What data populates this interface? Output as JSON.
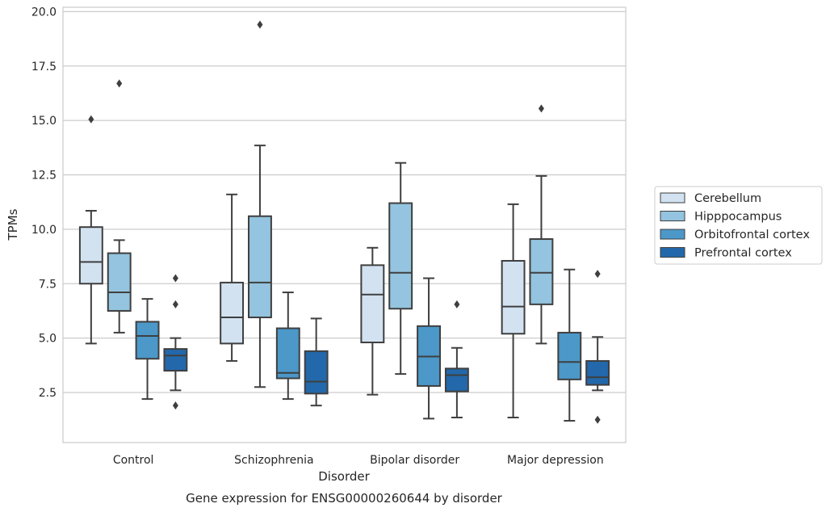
{
  "chart_data": {
    "type": "box",
    "title": "",
    "caption": "Gene expression for ENSG00000260644 by disorder",
    "xlabel": "Disorder",
    "ylabel": "TPMs",
    "categories": [
      "Control",
      "Schizophrenia",
      "Bipolar disorder",
      "Major depression"
    ],
    "ylim": [
      0.2,
      20.2
    ],
    "yticks": [
      2.5,
      5.0,
      7.5,
      10.0,
      12.5,
      15.0,
      17.5,
      20.0
    ],
    "ytick_labels": [
      "2.5",
      "5.0",
      "7.5",
      "10.0",
      "12.5",
      "15.0",
      "17.5",
      "20.0"
    ],
    "grid": "horizontal",
    "legend_position": "right",
    "series": [
      {
        "name": "Cerebellum",
        "color": "#d2e2f1",
        "boxes": [
          {
            "whislo": 4.75,
            "q1": 7.5,
            "med": 8.5,
            "q3": 10.1,
            "whishi": 10.85,
            "fliers": [
              15.05
            ]
          },
          {
            "whislo": 3.95,
            "q1": 4.75,
            "med": 5.95,
            "q3": 7.55,
            "whishi": 11.6,
            "fliers": []
          },
          {
            "whislo": 2.4,
            "q1": 4.8,
            "med": 7.0,
            "q3": 8.35,
            "whishi": 9.15,
            "fliers": []
          },
          {
            "whislo": 1.35,
            "q1": 5.2,
            "med": 6.45,
            "q3": 8.55,
            "whishi": 11.15,
            "fliers": []
          }
        ]
      },
      {
        "name": "Hipppocampus",
        "color": "#94c4df",
        "boxes": [
          {
            "whislo": 5.25,
            "q1": 6.25,
            "med": 7.1,
            "q3": 8.9,
            "whishi": 9.5,
            "fliers": [
              16.7
            ]
          },
          {
            "whislo": 2.75,
            "q1": 5.95,
            "med": 7.55,
            "q3": 10.6,
            "whishi": 13.85,
            "fliers": [
              19.4
            ]
          },
          {
            "whislo": 3.35,
            "q1": 6.35,
            "med": 8.0,
            "q3": 11.2,
            "whishi": 13.05,
            "fliers": []
          },
          {
            "whislo": 4.75,
            "q1": 6.55,
            "med": 8.0,
            "q3": 9.55,
            "whishi": 12.45,
            "fliers": [
              15.55
            ]
          }
        ]
      },
      {
        "name": "Orbitofrontal cortex",
        "color": "#4b98c9",
        "boxes": [
          {
            "whislo": 2.2,
            "q1": 4.05,
            "med": 5.1,
            "q3": 5.75,
            "whishi": 6.8,
            "fliers": []
          },
          {
            "whislo": 2.2,
            "q1": 3.15,
            "med": 3.4,
            "q3": 5.45,
            "whishi": 7.1,
            "fliers": []
          },
          {
            "whislo": 1.3,
            "q1": 2.8,
            "med": 4.15,
            "q3": 5.55,
            "whishi": 7.75,
            "fliers": []
          },
          {
            "whislo": 1.2,
            "q1": 3.1,
            "med": 3.9,
            "q3": 5.25,
            "whishi": 8.15,
            "fliers": []
          }
        ]
      },
      {
        "name": "Prefrontal cortex",
        "color": "#2368aa",
        "boxes": [
          {
            "whislo": 2.6,
            "q1": 3.5,
            "med": 4.2,
            "q3": 4.5,
            "whishi": 5.0,
            "fliers": [
              7.75,
              6.55,
              1.9
            ]
          },
          {
            "whislo": 1.9,
            "q1": 2.45,
            "med": 3.0,
            "q3": 4.4,
            "whishi": 5.9,
            "fliers": []
          },
          {
            "whislo": 1.35,
            "q1": 2.55,
            "med": 3.3,
            "q3": 3.6,
            "whishi": 4.55,
            "fliers": [
              6.55
            ]
          },
          {
            "whislo": 2.6,
            "q1": 2.85,
            "med": 3.2,
            "q3": 3.95,
            "whishi": 5.05,
            "fliers": [
              7.95,
              1.25
            ]
          }
        ]
      }
    ]
  }
}
